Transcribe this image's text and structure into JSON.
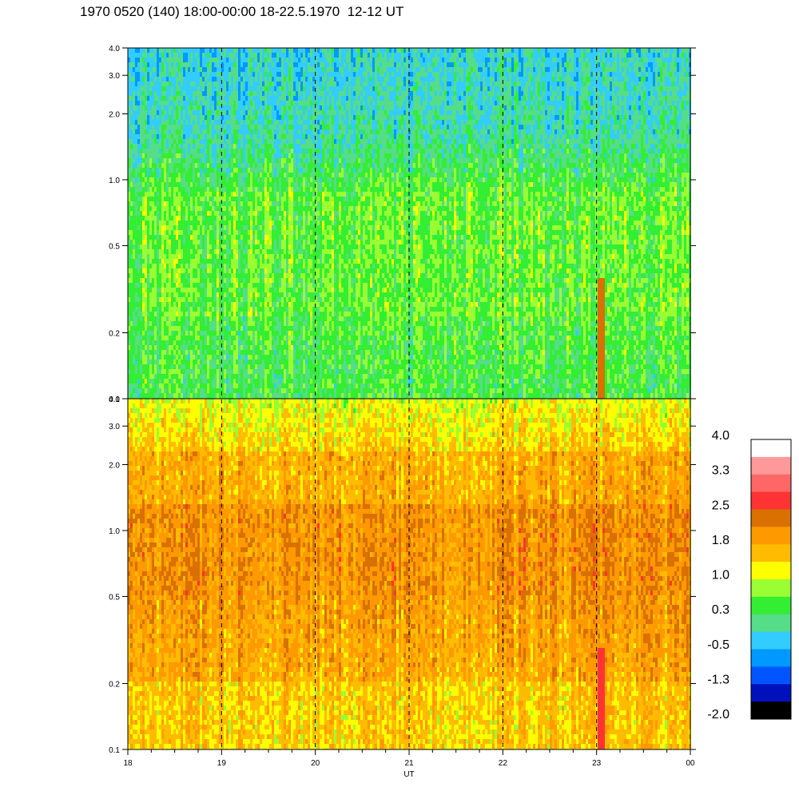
{
  "title": "1970 0520 (140) 18:00-00:00 18-22.5.1970  12-12 UT",
  "chart_data": [
    {
      "type": "heatmap",
      "panel": "top",
      "x_range": [
        "18",
        "00"
      ],
      "y_range": [
        0.1,
        4.0
      ],
      "y_scale": "log",
      "ytick_labels": [
        "4.0",
        "3.0",
        "2.0",
        "1.0",
        "0.5",
        "0.2",
        "0.1"
      ],
      "ytick_values": [
        4.0,
        3.0,
        2.0,
        1.0,
        0.5,
        0.2,
        0.1
      ],
      "dashed_gridlines_x": [
        "19",
        "20",
        "21",
        "22",
        "23"
      ],
      "dominant_levels": {
        "high_freq": "0.3 to -0.5",
        "mid_freq": "0.3 to 1.0",
        "low_freq": "0.3"
      }
    },
    {
      "type": "heatmap",
      "panel": "bottom",
      "x_range": [
        "18",
        "00"
      ],
      "y_range": [
        0.1,
        4.0
      ],
      "y_scale": "log",
      "ytick_labels": [
        "4.0",
        "3.0",
        "2.0",
        "1.0",
        "0.5",
        "0.2",
        "0.1"
      ],
      "ytick_values": [
        4.0,
        3.0,
        2.0,
        1.0,
        0.5,
        0.2,
        0.1
      ],
      "dashed_gridlines_x": [
        "19",
        "20",
        "21",
        "22",
        "23"
      ],
      "dominant_levels": {
        "high_freq": "1.0 to 1.8",
        "mid_freq": "1.8 to 2.5",
        "low_freq": "1.0 to 1.8"
      }
    }
  ],
  "xaxis": {
    "label": "UT",
    "ticks": [
      "18",
      "19",
      "20",
      "21",
      "22",
      "23",
      "00"
    ]
  },
  "colorbar": {
    "labels": [
      "4.0",
      "3.3",
      "2.5",
      "1.8",
      "1.0",
      "0.3",
      "-0.5",
      "-1.3",
      "-2.0"
    ],
    "colors": [
      "#ffffff",
      "#ff9999",
      "#ff6666",
      "#ff3333",
      "#d97000",
      "#ff9900",
      "#ffbb00",
      "#ffff00",
      "#99ff33",
      "#33ee33",
      "#55dd88",
      "#33ccff",
      "#0099ff",
      "#0055ff",
      "#0011bb",
      "#000000"
    ]
  }
}
